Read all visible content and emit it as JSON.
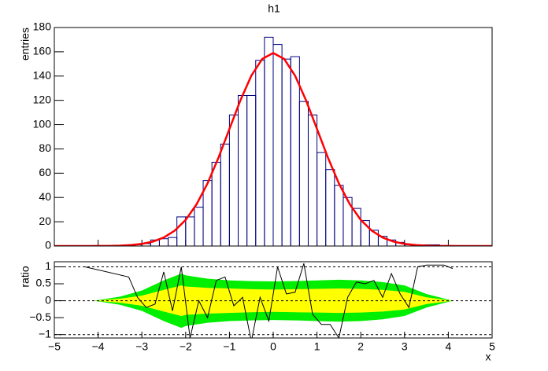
{
  "chart_data": [
    {
      "type": "histogram",
      "title": "h1",
      "ylabel": "entries",
      "color": "#000080",
      "bins": [
        -5,
        -4.8,
        -4.6,
        -4.4,
        -4.2,
        -4,
        -3.8,
        -3.6,
        -3.4,
        -3.2,
        -3,
        -2.8,
        -2.6,
        -2.4,
        -2.2,
        -2,
        -1.8,
        -1.6,
        -1.4,
        -1.2,
        -1,
        -0.8,
        -0.6,
        -0.4,
        -0.2,
        0,
        0.2,
        0.4,
        0.6,
        0.8,
        1,
        1.2,
        1.4,
        1.6,
        1.8,
        2,
        2.2,
        2.4,
        2.6,
        2.8,
        3,
        3.2,
        3.4,
        3.6,
        3.8,
        4,
        4.2,
        4.4,
        4.6,
        4.8,
        5
      ],
      "counts": [
        0,
        0,
        0,
        0,
        0,
        0,
        0,
        0,
        0,
        1,
        2,
        5,
        6,
        7,
        24,
        24,
        32,
        54,
        69,
        84,
        108,
        124,
        124,
        153,
        172,
        166,
        154,
        156,
        119,
        108,
        77,
        63,
        50,
        40,
        31,
        21,
        13,
        8,
        5,
        3,
        1,
        0,
        1,
        1,
        0,
        0,
        0,
        0,
        0,
        0
      ],
      "fit": {
        "color": "#ff0000",
        "x": [
          -5,
          -4.75,
          -4.5,
          -4.25,
          -4,
          -3.75,
          -3.5,
          -3.25,
          -3,
          -2.75,
          -2.5,
          -2.25,
          -2,
          -1.75,
          -1.5,
          -1.25,
          -1,
          -0.75,
          -0.5,
          -0.25,
          0,
          0.25,
          0.5,
          0.75,
          1,
          1.25,
          1.5,
          1.75,
          2,
          2.25,
          2.5,
          2.75,
          3,
          3.25,
          3.5,
          3.75,
          4,
          4.25,
          4.5,
          4.75,
          5
        ],
        "y": [
          0,
          0,
          0,
          0,
          0.05,
          0.1,
          0.3,
          0.8,
          1.8,
          3.6,
          7,
          12.7,
          21.5,
          34.4,
          51.6,
          72.8,
          96.4,
          120,
          140.3,
          154.1,
          159,
          154.1,
          140.3,
          120,
          96.4,
          72.8,
          51.6,
          34.4,
          21.5,
          12.7,
          7,
          3.6,
          1.8,
          0.8,
          0.3,
          0.1,
          0.05,
          0,
          0,
          0,
          0
        ]
      },
      "xlim": [
        -5,
        5
      ],
      "xticks": [
        -5,
        -4,
        -3,
        -2,
        -1,
        0,
        1,
        2,
        3,
        4,
        5
      ],
      "ylim": [
        0,
        180
      ],
      "yticks": [
        0,
        20,
        40,
        60,
        80,
        100,
        120,
        140,
        160,
        180
      ]
    },
    {
      "type": "ratio",
      "ylabel": "ratio",
      "xlabel": "x",
      "line_color": "#000000",
      "band_2sigma_color": "#00ee00",
      "band_1sigma_color": "#ffff00",
      "x": [
        -4.3,
        -3.3,
        -3.1,
        -2.9,
        -2.7,
        -2.5,
        -2.3,
        -2.1,
        -1.9,
        -1.7,
        -1.5,
        -1.3,
        -1.1,
        -0.9,
        -0.7,
        -0.5,
        -0.3,
        -0.1,
        0.1,
        0.3,
        0.5,
        0.7,
        0.9,
        1.1,
        1.3,
        1.5,
        1.7,
        1.9,
        2.1,
        2.3,
        2.5,
        2.7,
        2.9,
        3.1,
        3.3,
        3.5,
        3.9,
        4.1
      ],
      "y": [
        1.0,
        0.7,
        0.1,
        -0.2,
        -0.1,
        0.85,
        -0.3,
        1.0,
        -1.1,
        0.0,
        -0.5,
        0.6,
        0.7,
        -0.15,
        0.1,
        -1.2,
        0.1,
        -0.6,
        1.0,
        0.2,
        0.25,
        1.1,
        -0.4,
        -0.7,
        -0.7,
        -1.1,
        0.1,
        0.55,
        0.5,
        0.6,
        0.1,
        0.8,
        0.2,
        -0.2,
        1.0,
        1.05,
        1.05,
        0.95
      ],
      "band_x": [
        -4.1,
        -3.5,
        -3,
        -2.5,
        -2.1,
        -2,
        -1.5,
        -1,
        -0.5,
        0,
        0.5,
        1,
        1.5,
        2,
        2.5,
        3,
        3.5,
        4.1
      ],
      "band_2sigma": [
        0,
        0.12,
        0.3,
        0.6,
        0.8,
        0.75,
        0.65,
        0.6,
        0.58,
        0.57,
        0.58,
        0.6,
        0.62,
        0.6,
        0.55,
        0.45,
        0.2,
        0
      ],
      "band_1sigma": [
        0,
        0.06,
        0.15,
        0.32,
        0.45,
        0.42,
        0.38,
        0.36,
        0.34,
        0.33,
        0.34,
        0.35,
        0.36,
        0.35,
        0.32,
        0.26,
        0.1,
        0
      ],
      "dashed_lines": [
        -1,
        0,
        1
      ],
      "xlim": [
        -5,
        5
      ],
      "xticks": [
        {
          "value": -5,
          "label": "−5"
        },
        {
          "value": -4,
          "label": "−4"
        },
        {
          "value": -3,
          "label": "−3"
        },
        {
          "value": -2,
          "label": "−2"
        },
        {
          "value": -1,
          "label": "−1"
        },
        0,
        1,
        2,
        3,
        4,
        5
      ],
      "ylim": [
        -1.1,
        1.15
      ],
      "yticks": [
        {
          "value": -1,
          "label": "−1"
        },
        {
          "value": -0.5,
          "label": "−0.5"
        },
        0,
        0.5,
        1
      ]
    }
  ]
}
